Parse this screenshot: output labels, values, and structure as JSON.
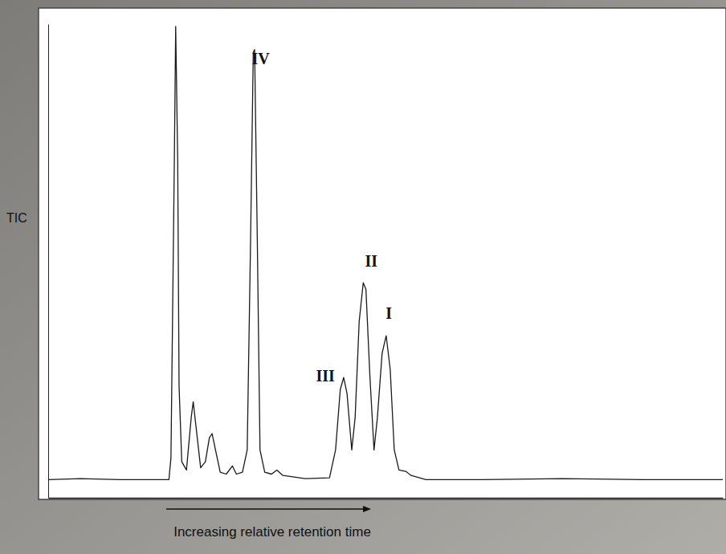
{
  "chart_data": {
    "type": "line",
    "y_label": "TIC",
    "x_label": "Increasing relative retention time",
    "color": "#1a1a1a",
    "tick_labels": false,
    "grid": false,
    "xlim": [
      0,
      100
    ],
    "ylim": [
      -4,
      100
    ],
    "x": [
      0,
      4.8,
      10.7,
      16.7,
      17.9,
      18.2,
      18.7,
      18.9,
      19.2,
      19.4,
      19.8,
      20.5,
      21.2,
      21.5,
      21.9,
      22.6,
      23.3,
      23.9,
      24.3,
      24.8,
      25.5,
      26.4,
      27.3,
      27.9,
      28.8,
      29.5,
      30.0,
      30.4,
      30.6,
      31.0,
      31.4,
      32.1,
      33.1,
      33.9,
      34.8,
      38.1,
      41.7,
      42.6,
      43.3,
      43.8,
      44.3,
      45.0,
      45.5,
      46.1,
      46.7,
      47.1,
      47.7,
      48.3,
      48.8,
      49.5,
      50.1,
      50.7,
      51.3,
      52.0,
      53.0,
      53.8,
      56.0,
      64.3,
      76.2,
      88.1,
      100
    ],
    "values": [
      0,
      0.2,
      0,
      0,
      0,
      4.8,
      70,
      99.5,
      70,
      20.6,
      3.9,
      2.1,
      13.6,
      17.1,
      11.8,
      2.6,
      3.9,
      9.2,
      10.1,
      6.5,
      1.6,
      1.2,
      3.0,
      1.2,
      1.6,
      6.5,
      52.4,
      93.8,
      94.4,
      52.4,
      6.5,
      1.6,
      1.2,
      2.1,
      0.9,
      0.2,
      0.4,
      6.5,
      19.8,
      22.4,
      18.9,
      6.5,
      13.6,
      34.7,
      43.2,
      41.8,
      22.4,
      6.5,
      13.6,
      27.7,
      31.6,
      24.2,
      6.5,
      2.1,
      1.8,
      0.9,
      0,
      0,
      0.2,
      0,
      0
    ],
    "annotations": [
      {
        "text": "IV",
        "x": 31.5,
        "y": 92
      },
      {
        "text": "III",
        "x": 41.1,
        "y": 22.4
      },
      {
        "text": "II",
        "x": 47.9,
        "y": 47.6
      },
      {
        "text": "I",
        "x": 50.5,
        "y": 36.2
      }
    ]
  }
}
